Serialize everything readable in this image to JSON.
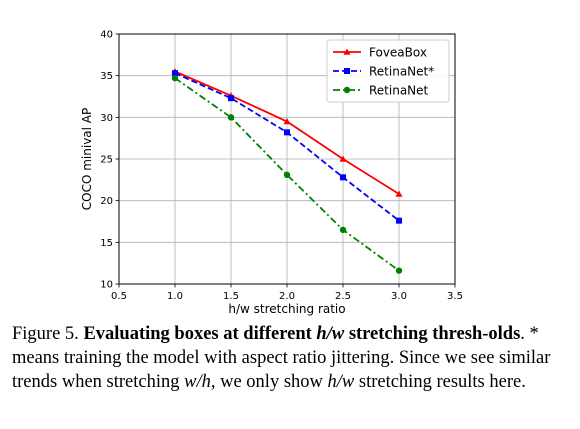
{
  "chart_data": {
    "type": "line",
    "xlabel": "h/w stretching ratio",
    "ylabel": "COCO minival AP",
    "xlim": [
      0.5,
      3.5
    ],
    "ylim": [
      10,
      40
    ],
    "xticks": [
      "0.5",
      "1.0",
      "1.5",
      "2.0",
      "2.5",
      "3.0",
      "3.5"
    ],
    "yticks": [
      "10",
      "15",
      "20",
      "25",
      "30",
      "35",
      "40"
    ],
    "legend_position": "top-right",
    "grid": true,
    "series": [
      {
        "name": "FoveaBox",
        "color": "#ff0000",
        "marker": "triangle",
        "linestyle": "solid",
        "x": [
          1.0,
          1.5,
          2.0,
          2.5,
          3.0
        ],
        "y": [
          35.5,
          32.6,
          29.5,
          25.0,
          20.8
        ]
      },
      {
        "name": "RetinaNet*",
        "color": "#0000ff",
        "marker": "square",
        "linestyle": "dashed",
        "x": [
          1.0,
          1.5,
          2.0,
          2.5,
          3.0
        ],
        "y": [
          35.3,
          32.3,
          28.2,
          22.8,
          17.6
        ]
      },
      {
        "name": "RetinaNet",
        "color": "#008000",
        "marker": "circle",
        "linestyle": "dashdot",
        "x": [
          1.0,
          1.5,
          2.0,
          2.5,
          3.0
        ],
        "y": [
          34.7,
          30.0,
          23.1,
          16.5,
          11.6
        ]
      }
    ]
  },
  "caption": {
    "fig_label": "Figure 5.",
    "bold_part1": "Evaluating boxes at different ",
    "bold_math": "h/w",
    "bold_part2": " stretching thresh-olds",
    "text1": ". * means training the model with aspect ratio jittering. Since we see similar trends when stretching ",
    "math1": "w/h",
    "text2": ", we only show ",
    "math2": "h/w",
    "text3": " stretching results here."
  }
}
